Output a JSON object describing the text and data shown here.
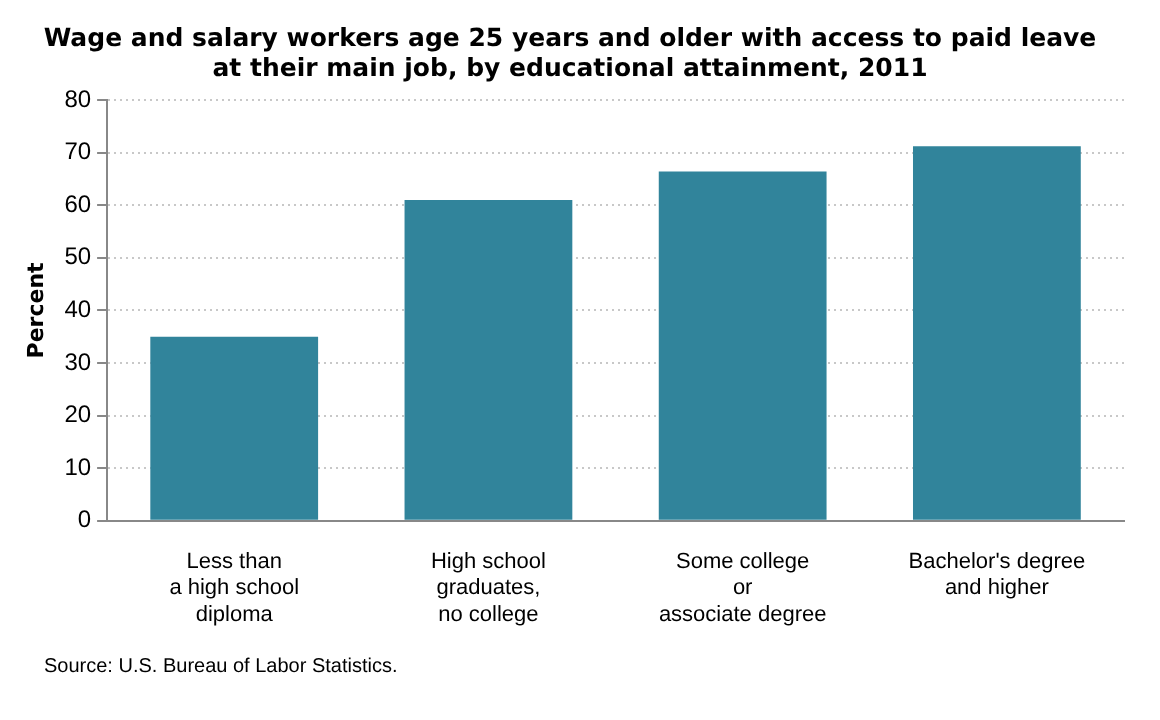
{
  "chart_data": {
    "type": "bar",
    "title": "Wage and salary workers age 25 years and older with access to paid leave\nat their main job, by educational attainment, 2011",
    "categories": [
      "Less than\na high school\ndiploma",
      "High school\ngraduates,\nno college",
      "Some college\nor\nassociate degree",
      "Bachelor's degree\nand higher"
    ],
    "values": [
      35.0,
      61.0,
      66.4,
      71.2
    ],
    "color": "#31849b",
    "ylabel": "Percent",
    "ylim": [
      0,
      80
    ],
    "yticks": [
      0,
      10,
      20,
      30,
      40,
      50,
      60,
      70,
      80
    ],
    "grid": "y",
    "annotations": [
      "Source: U.S. Bureau of Labor Statistics."
    ]
  }
}
